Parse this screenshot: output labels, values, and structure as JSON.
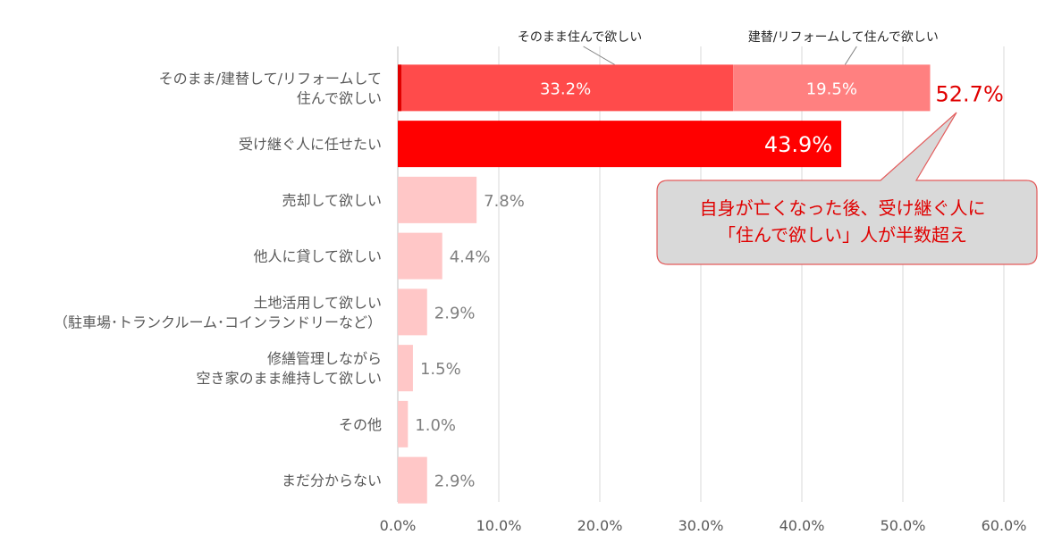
{
  "chart_data": {
    "type": "bar",
    "orientation": "horizontal",
    "stacked_first_row": true,
    "categories": [
      [
        "そのまま/建替して/リフォームして",
        "住んで欲しい"
      ],
      [
        "受け継ぐ人に任せたい"
      ],
      [
        "売却して欲しい"
      ],
      [
        "他人に貸して欲しい"
      ],
      [
        "土地活用して欲しい",
        "（駐車場･トランクルーム･コインランドリーなど）"
      ],
      [
        "修繕管理しながら",
        "空き家のまま維持して欲しい"
      ],
      [
        "その他"
      ],
      [
        "まだ分からない"
      ]
    ],
    "segments": [
      {
        "name": "そのまま住んで欲しい",
        "value": 33.2,
        "label": "33.2%",
        "color": "#ff4b4b"
      },
      {
        "name": "建替/リフォームして住んで欲しい",
        "value": 19.5,
        "label": "19.5%",
        "color": "#ff8080"
      }
    ],
    "segment_accent_color": "#e00000",
    "first_total_label": "52.7%",
    "values": [
      52.7,
      43.9,
      7.8,
      4.4,
      2.9,
      1.5,
      1.0,
      2.9
    ],
    "value_labels": [
      "52.7%",
      "43.9%",
      "7.8%",
      "4.4%",
      "2.9%",
      "1.5%",
      "1.0%",
      "2.9%"
    ],
    "bar_colors": [
      "#ff4b4b",
      "#ff0000",
      "#ffc7c7",
      "#ffc7c7",
      "#ffc7c7",
      "#ffc7c7",
      "#ffc7c7",
      "#ffc7c7"
    ],
    "xlim": [
      0,
      60
    ],
    "xticks": [
      0,
      10,
      20,
      30,
      40,
      50,
      60
    ],
    "xtick_labels": [
      "0.0%",
      "10.0%",
      "20.0%",
      "30.0%",
      "40.0%",
      "50.0%",
      "60.0%"
    ],
    "grid": true,
    "legend": "none",
    "title": "",
    "xlabel": "",
    "ylabel": ""
  },
  "callout": {
    "lines": [
      "自身が亡くなった後、受け継ぐ人に",
      "「住んで欲しい」人が半数超え"
    ],
    "fill": "#d9d9d9",
    "border": "#e35b5b",
    "text_color": "#e00000"
  }
}
